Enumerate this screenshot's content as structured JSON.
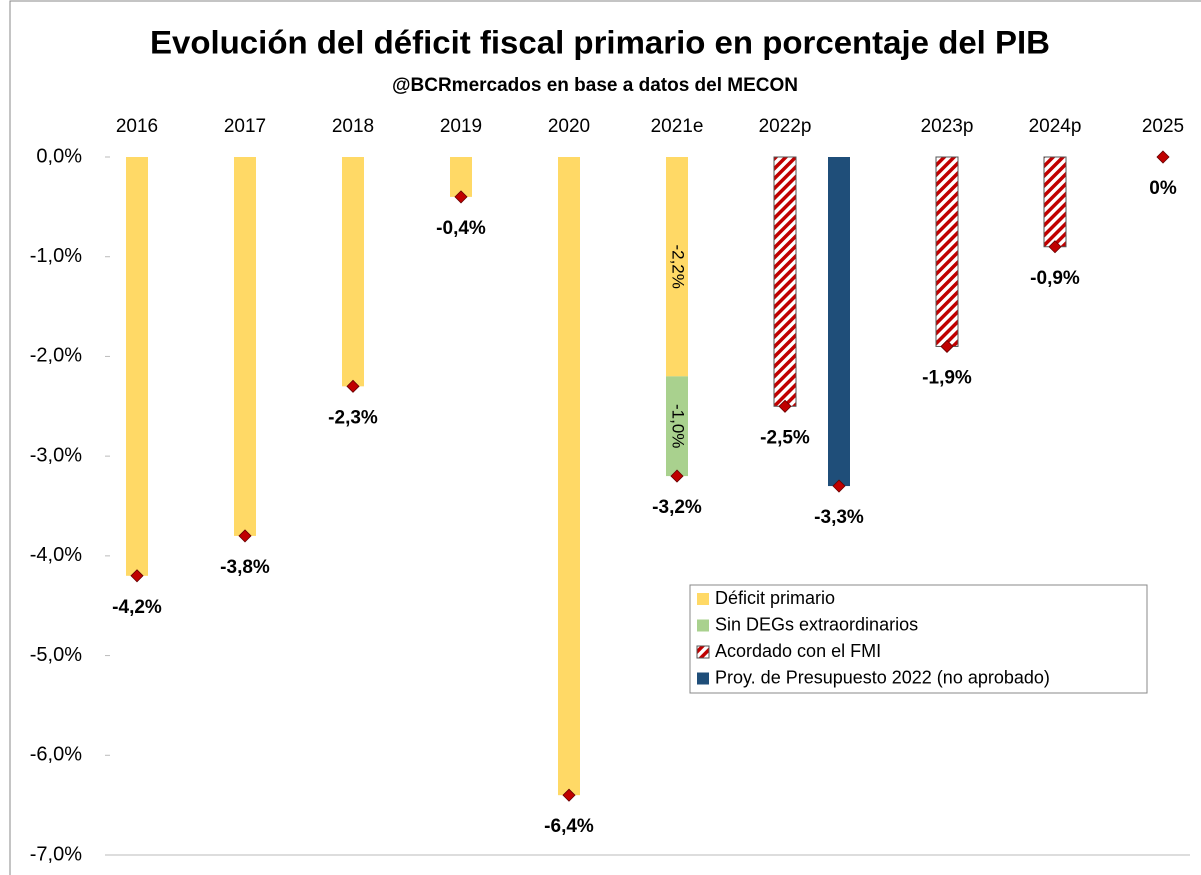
{
  "chart_data": {
    "type": "bar",
    "title": "Evolución del déficit fiscal primario en porcentaje del PIB",
    "subtitle": "@BCRmercados  en base a datos del MECON",
    "categories": [
      "2016",
      "2017",
      "2018",
      "2019",
      "2020",
      "2021e",
      "2022p",
      null,
      "2023p",
      "2024p",
      "2025"
    ],
    "series": [
      {
        "name": "Déficit primario",
        "color": "#FFD966",
        "values": [
          -4.2,
          -3.8,
          -2.3,
          -0.4,
          -6.4,
          -2.2,
          null,
          null,
          null,
          null,
          null
        ],
        "value_labels": [
          null,
          null,
          null,
          null,
          null,
          "-2,2%",
          null,
          null,
          null,
          null,
          null
        ]
      },
      {
        "name": "Sin DEGs extraordinarios",
        "color": "#A9D18E",
        "values": [
          null,
          null,
          null,
          null,
          null,
          -1.0,
          null,
          null,
          null,
          null,
          null
        ],
        "value_labels": [
          null,
          null,
          null,
          null,
          null,
          "-1,0%",
          null,
          null,
          null,
          null,
          null
        ]
      },
      {
        "name": "Acordado con el FMI",
        "color": "#C00000",
        "hatch": true,
        "values": [
          null,
          null,
          null,
          null,
          null,
          null,
          -2.5,
          null,
          -1.9,
          -0.9,
          0
        ]
      },
      {
        "name": "Proy. de Presupuesto 2022 (no aprobado)",
        "color": "#1F4E79",
        "values": [
          null,
          null,
          null,
          null,
          null,
          null,
          null,
          -3.3,
          null,
          null,
          null
        ]
      }
    ],
    "markers": {
      "color": "#C00000",
      "values": [
        -4.2,
        -3.8,
        -2.3,
        -0.4,
        -6.4,
        -3.2,
        -2.5,
        -3.3,
        -1.9,
        -0.9,
        0
      ],
      "value_labels": [
        "-4,2%",
        "-3,8%",
        "-2,3%",
        "-0,4%",
        "-6,4%",
        "-3,2%",
        "-2,5%",
        "-3,3%",
        "-1,9%",
        "-0,9%",
        "0%"
      ]
    },
    "ylim": [
      -7,
      0
    ],
    "yticks": [
      {
        "value": 0,
        "label": "0,0%"
      },
      {
        "value": -1,
        "label": "-1,0%"
      },
      {
        "value": -2,
        "label": "-2,0%"
      },
      {
        "value": -3,
        "label": "-3,0%"
      },
      {
        "value": -4,
        "label": "-4,0%"
      },
      {
        "value": -5,
        "label": "-5,0%"
      },
      {
        "value": -6,
        "label": "-6,0%"
      },
      {
        "value": -7,
        "label": "-7,0%"
      }
    ],
    "grid": false,
    "legend": "lower right"
  }
}
